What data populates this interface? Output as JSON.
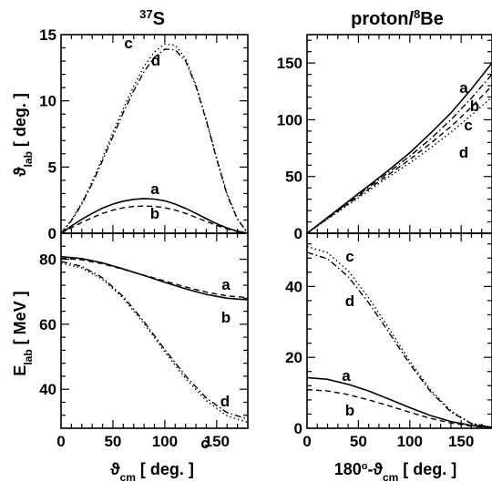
{
  "chart_data": [
    {
      "type": "line",
      "title": "37S",
      "title_sup": "37",
      "title_main": "S",
      "ylabel": "ϑlab [ deg. ]",
      "ylabel_main": "ϑ",
      "ylabel_sub": "lab",
      "ylabel_rest": " [ deg. ]",
      "xlim": [
        0,
        180
      ],
      "ylim": [
        0,
        15
      ],
      "xticks": [
        0,
        50,
        100,
        150
      ],
      "yticks": [
        0,
        5,
        10,
        15
      ],
      "ytick_labels": [
        "0",
        "5",
        "10",
        "15"
      ],
      "series": [
        {
          "label": "a",
          "style": "solid",
          "x": [
            0,
            10,
            20,
            30,
            40,
            50,
            60,
            70,
            80,
            90,
            100,
            110,
            120,
            130,
            140,
            150,
            160,
            170,
            180
          ],
          "y": [
            0,
            0.55,
            1.05,
            1.5,
            1.9,
            2.2,
            2.42,
            2.56,
            2.62,
            2.58,
            2.45,
            2.2,
            1.88,
            1.5,
            1.1,
            0.72,
            0.4,
            0.15,
            0
          ]
        },
        {
          "label": "b",
          "style": "dashed",
          "x": [
            0,
            10,
            20,
            30,
            40,
            50,
            60,
            70,
            80,
            90,
            100,
            110,
            120,
            130,
            140,
            150,
            160,
            170,
            180
          ],
          "y": [
            0,
            0.42,
            0.82,
            1.18,
            1.5,
            1.75,
            1.92,
            2.02,
            2.06,
            2.03,
            1.93,
            1.75,
            1.5,
            1.2,
            0.9,
            0.6,
            0.33,
            0.12,
            0
          ]
        },
        {
          "label": "c",
          "style": "dotted",
          "x": [
            0,
            10,
            20,
            30,
            40,
            50,
            60,
            70,
            80,
            90,
            100,
            110,
            120,
            130,
            140,
            150,
            160,
            170,
            180
          ],
          "y": [
            0,
            1.0,
            2.3,
            3.9,
            5.7,
            7.6,
            9.4,
            11.1,
            12.6,
            13.7,
            14.3,
            14.2,
            13.2,
            11.2,
            8.6,
            5.7,
            3.0,
            1.1,
            0
          ]
        },
        {
          "label": "d",
          "style": "dashdot",
          "x": [
            0,
            10,
            20,
            30,
            40,
            50,
            60,
            70,
            80,
            90,
            100,
            110,
            120,
            130,
            140,
            150,
            160,
            170,
            180
          ],
          "y": [
            0,
            0.95,
            2.2,
            3.75,
            5.5,
            7.3,
            9.1,
            10.75,
            12.2,
            13.3,
            13.9,
            13.85,
            13.0,
            11.1,
            8.5,
            5.6,
            2.9,
            1.05,
            0
          ]
        }
      ]
    },
    {
      "type": "line",
      "title": "proton/8Be",
      "title_pre": "proton/",
      "title_sup": "8",
      "title_main": "Be",
      "xlim": [
        0,
        180
      ],
      "ylim": [
        0,
        175
      ],
      "xticks": [
        0,
        50,
        100,
        150
      ],
      "yticks": [
        0,
        50,
        100,
        150
      ],
      "ytick_labels": [
        "0",
        "50",
        "100",
        "150"
      ],
      "series": [
        {
          "label": "a",
          "style": "solid",
          "x": [
            0,
            20,
            40,
            60,
            80,
            100,
            120,
            140,
            160,
            180
          ],
          "y": [
            0,
            14,
            28,
            42,
            56,
            71,
            88,
            106,
            127,
            150
          ]
        },
        {
          "label": "b",
          "style": "dashdot",
          "x": [
            0,
            20,
            40,
            60,
            80,
            100,
            120,
            140,
            160,
            180
          ],
          "y": [
            0,
            13.5,
            27,
            40.5,
            54,
            68,
            83,
            100,
            119,
            140
          ]
        },
        {
          "label": "c",
          "style": "dashed",
          "x": [
            0,
            20,
            40,
            60,
            80,
            100,
            120,
            140,
            160,
            180
          ],
          "y": [
            0,
            13,
            26,
            39,
            52,
            65,
            79,
            94,
            111,
            130
          ]
        },
        {
          "label": "d",
          "style": "dotted",
          "x": [
            0,
            20,
            40,
            60,
            80,
            100,
            120,
            140,
            160,
            180
          ],
          "y": [
            0,
            12.5,
            25,
            37.5,
            50,
            62,
            75,
            89,
            104,
            120
          ]
        }
      ]
    },
    {
      "type": "line",
      "ylabel": "Elab [ MeV ]",
      "ylabel_main": "E",
      "ylabel_sub": "lab",
      "ylabel_rest": " [ MeV ]",
      "xlabel": "ϑcm [ deg. ]",
      "xlabel_main": "ϑ",
      "xlabel_sub": "cm",
      "xlabel_rest": " [ deg. ]",
      "xlim": [
        0,
        180
      ],
      "ylim": [
        28,
        88
      ],
      "xticks": [
        0,
        50,
        100,
        150
      ],
      "xtick_labels": [
        "0",
        "50",
        "100",
        "150"
      ],
      "yticks": [
        40,
        60,
        80
      ],
      "ytick_labels": [
        "40",
        "60",
        "80"
      ],
      "series": [
        {
          "label": "a",
          "style": "solid",
          "x": [
            0,
            20,
            40,
            60,
            80,
            100,
            120,
            140,
            160,
            180
          ],
          "y": [
            80.8,
            80.2,
            78.9,
            77.0,
            75.0,
            72.9,
            70.9,
            69.2,
            68.0,
            67.5
          ]
        },
        {
          "label": "b",
          "style": "dashed",
          "x": [
            0,
            20,
            40,
            60,
            80,
            100,
            120,
            140,
            160,
            180
          ],
          "y": [
            80.3,
            79.8,
            78.6,
            76.9,
            75.1,
            73.3,
            71.5,
            69.9,
            68.7,
            68.2
          ]
        },
        {
          "label": "c",
          "style": "dotted",
          "x": [
            0,
            20,
            40,
            60,
            80,
            100,
            120,
            140,
            160,
            180
          ],
          "y": [
            78.8,
            77.3,
            73.8,
            68.0,
            60.2,
            51.5,
            43.3,
            36.5,
            31.8,
            29.8
          ]
        },
        {
          "label": "d",
          "style": "dashdot",
          "x": [
            0,
            20,
            40,
            60,
            80,
            100,
            120,
            140,
            160,
            180
          ],
          "y": [
            79.3,
            77.8,
            74.3,
            68.5,
            60.8,
            52.2,
            44.1,
            37.3,
            32.8,
            30.8
          ]
        }
      ]
    },
    {
      "type": "line",
      "xlabel": "180°-ϑcm [ deg. ]",
      "xlabel_pre": "180",
      "xlabel_deg": "o",
      "xlabel_main": "-ϑ",
      "xlabel_sub": "cm",
      "xlabel_rest": " [ deg. ]",
      "xlim": [
        0,
        180
      ],
      "ylim": [
        0,
        55
      ],
      "xticks": [
        0,
        50,
        100,
        150
      ],
      "xtick_labels": [
        "0",
        "50",
        "100",
        "150"
      ],
      "yticks": [
        0,
        20,
        40
      ],
      "ytick_labels": [
        "0",
        "20",
        "40"
      ],
      "series": [
        {
          "label": "a",
          "style": "solid",
          "x": [
            0,
            20,
            40,
            60,
            80,
            100,
            120,
            140,
            160,
            180
          ],
          "y": [
            14.3,
            13.8,
            12.4,
            10.5,
            8.2,
            5.8,
            3.6,
            1.9,
            0.8,
            0.3
          ]
        },
        {
          "label": "b",
          "style": "dashed",
          "x": [
            0,
            20,
            40,
            60,
            80,
            100,
            120,
            140,
            160,
            180
          ],
          "y": [
            10.9,
            10.5,
            9.5,
            8.0,
            6.3,
            4.5,
            2.8,
            1.5,
            0.6,
            0.2
          ]
        },
        {
          "label": "c",
          "style": "dotted",
          "x": [
            0,
            20,
            40,
            60,
            80,
            100,
            120,
            140,
            160,
            180
          ],
          "y": [
            51.3,
            49.5,
            44.4,
            36.8,
            28.0,
            18.9,
            10.9,
            4.9,
            1.4,
            0.2
          ]
        },
        {
          "label": "d",
          "style": "dashdot",
          "x": [
            0,
            20,
            40,
            60,
            80,
            100,
            120,
            140,
            160,
            180
          ],
          "y": [
            49.6,
            47.8,
            42.8,
            35.4,
            26.9,
            18.1,
            10.4,
            4.6,
            1.3,
            0.2
          ]
        }
      ]
    }
  ]
}
